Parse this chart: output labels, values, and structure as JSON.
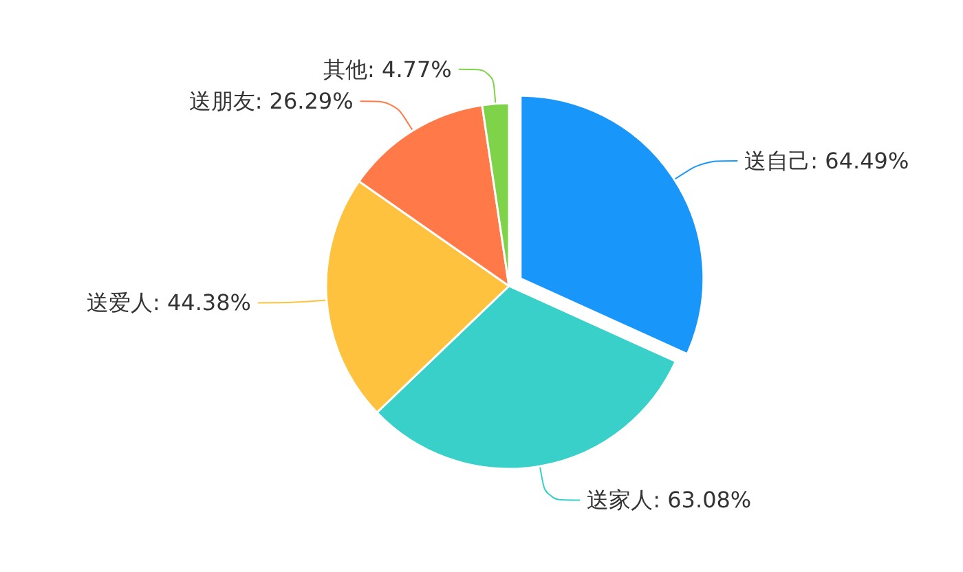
{
  "chart_data": {
    "type": "pie",
    "categories": [
      "送自己",
      "送家人",
      "送爱人",
      "送朋友",
      "其他"
    ],
    "values": [
      64.49,
      63.08,
      44.38,
      26.29,
      4.77
    ],
    "value_labels": [
      "64.49%",
      "63.08%",
      "44.38%",
      "26.29%",
      "4.77%"
    ],
    "colors": [
      "#1996fa",
      "#38d0c8",
      "#ffc23e",
      "#ff7a48",
      "#7ed348"
    ],
    "legend": false
  }
}
